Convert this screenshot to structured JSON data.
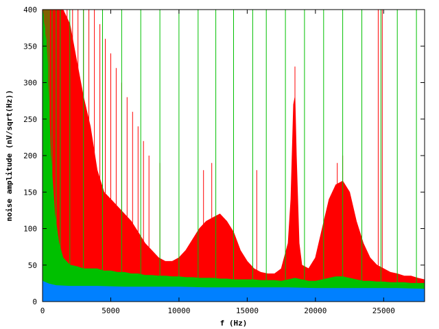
{
  "chart_data": {
    "type": "line",
    "title": "",
    "xlabel": "f (Hz)",
    "ylabel": "noise amplitude (nV/sqrt(Hz))",
    "xlim": [
      0,
      28000
    ],
    "ylim": [
      0,
      400
    ],
    "xticks": [
      0,
      5000,
      10000,
      15000,
      20000,
      25000
    ],
    "xtick_labels": [
      "0",
      "5000",
      "10000",
      "15000",
      "20000",
      "25000"
    ],
    "yticks": [
      0,
      50,
      100,
      150,
      200,
      250,
      300,
      350,
      400
    ],
    "ytick_labels": [
      "0",
      "50",
      "100",
      "150",
      "200",
      "250",
      "300",
      "350",
      "400"
    ],
    "grid": false,
    "legend": "none",
    "series": [
      {
        "color": "#ff0000",
        "x": [
          0,
          300,
          600,
          900,
          1200,
          1500,
          2000,
          2500,
          3000,
          3500,
          4000,
          4500,
          5000,
          5500,
          6000,
          6500,
          7000,
          7500,
          8000,
          8500,
          9000,
          9500,
          10000,
          10500,
          11000,
          11500,
          12000,
          12500,
          13000,
          13500,
          14000,
          14500,
          15000,
          15500,
          16000,
          16500,
          17000,
          17500,
          18000,
          18200,
          18400,
          18500,
          18600,
          18800,
          19000,
          19500,
          20000,
          20500,
          21000,
          21500,
          22000,
          22500,
          23000,
          23500,
          24000,
          24500,
          25000,
          25500,
          26000,
          26500,
          27000,
          27500,
          28000
        ],
        "y": [
          400,
          400,
          400,
          400,
          400,
          400,
          380,
          330,
          280,
          240,
          180,
          150,
          140,
          130,
          120,
          110,
          95,
          80,
          70,
          60,
          55,
          55,
          60,
          70,
          85,
          100,
          110,
          115,
          120,
          110,
          95,
          70,
          55,
          45,
          40,
          38,
          38,
          45,
          80,
          140,
          270,
          280,
          200,
          80,
          50,
          45,
          60,
          100,
          140,
          160,
          165,
          150,
          110,
          80,
          60,
          50,
          45,
          40,
          38,
          35,
          35,
          32,
          30
        ]
      },
      {
        "color": "#00c000",
        "x": [
          0,
          300,
          600,
          900,
          1200,
          1500,
          2000,
          2500,
          3000,
          3500,
          4000,
          4500,
          5000,
          5500,
          6000,
          6500,
          7000,
          7500,
          8000,
          8500,
          9000,
          9500,
          10000,
          10500,
          11000,
          11500,
          12000,
          12500,
          13000,
          13500,
          14000,
          14500,
          15000,
          15500,
          16000,
          16500,
          17000,
          17500,
          18000,
          18500,
          19000,
          19500,
          20000,
          20500,
          21000,
          21500,
          22000,
          22500,
          23000,
          23500,
          24000,
          24500,
          25000,
          25500,
          26000,
          26500,
          27000,
          27500,
          28000
        ],
        "y": [
          400,
          350,
          200,
          120,
          80,
          60,
          50,
          48,
          45,
          45,
          45,
          42,
          42,
          40,
          40,
          38,
          38,
          36,
          36,
          35,
          35,
          34,
          34,
          33,
          33,
          32,
          32,
          32,
          31,
          31,
          30,
          30,
          30,
          30,
          29,
          29,
          29,
          28,
          30,
          32,
          30,
          28,
          28,
          30,
          32,
          34,
          34,
          32,
          30,
          28,
          28,
          27,
          27,
          26,
          26,
          26,
          25,
          25,
          25
        ]
      },
      {
        "color": "#0080ff",
        "x": [
          0,
          500,
          1000,
          2000,
          4000,
          6000,
          8000,
          10000,
          12000,
          14000,
          16000,
          18000,
          20000,
          22000,
          24000,
          26000,
          28000
        ],
        "y": [
          28,
          24,
          22,
          21,
          21,
          20,
          20,
          20,
          19,
          19,
          19,
          19,
          18,
          18,
          18,
          18,
          17
        ]
      }
    ],
    "spikes_red": [
      {
        "x": 300,
        "y": 400
      },
      {
        "x": 600,
        "y": 400
      },
      {
        "x": 1000,
        "y": 400
      },
      {
        "x": 1400,
        "y": 400
      },
      {
        "x": 1800,
        "y": 400
      },
      {
        "x": 2200,
        "y": 400
      },
      {
        "x": 2600,
        "y": 400
      },
      {
        "x": 3000,
        "y": 400
      },
      {
        "x": 3400,
        "y": 400
      },
      {
        "x": 3800,
        "y": 400
      },
      {
        "x": 4200,
        "y": 380
      },
      {
        "x": 4600,
        "y": 360
      },
      {
        "x": 5000,
        "y": 340
      },
      {
        "x": 5400,
        "y": 320
      },
      {
        "x": 5800,
        "y": 300
      },
      {
        "x": 6200,
        "y": 280
      },
      {
        "x": 6600,
        "y": 260
      },
      {
        "x": 7000,
        "y": 240
      },
      {
        "x": 7400,
        "y": 220
      },
      {
        "x": 7800,
        "y": 200
      },
      {
        "x": 8600,
        "y": 190
      },
      {
        "x": 11800,
        "y": 180
      },
      {
        "x": 12400,
        "y": 190
      },
      {
        "x": 15700,
        "y": 180
      },
      {
        "x": 18500,
        "y": 322
      },
      {
        "x": 21600,
        "y": 190
      },
      {
        "x": 22000,
        "y": 200
      },
      {
        "x": 24600,
        "y": 400
      },
      {
        "x": 24900,
        "y": 400
      }
    ],
    "spikes_green": [
      {
        "x": 100,
        "y": 400
      },
      {
        "x": 200,
        "y": 400
      },
      {
        "x": 300,
        "y": 400
      },
      {
        "x": 400,
        "y": 400
      },
      {
        "x": 500,
        "y": 400
      },
      {
        "x": 700,
        "y": 400
      },
      {
        "x": 1000,
        "y": 400
      },
      {
        "x": 1300,
        "y": 400
      },
      {
        "x": 2000,
        "y": 400
      },
      {
        "x": 3000,
        "y": 400
      },
      {
        "x": 4400,
        "y": 400
      },
      {
        "x": 5800,
        "y": 400
      },
      {
        "x": 7200,
        "y": 400
      },
      {
        "x": 8600,
        "y": 400
      },
      {
        "x": 10000,
        "y": 400
      },
      {
        "x": 11400,
        "y": 400
      },
      {
        "x": 12700,
        "y": 400
      },
      {
        "x": 14000,
        "y": 400
      },
      {
        "x": 15400,
        "y": 400
      },
      {
        "x": 16400,
        "y": 400
      },
      {
        "x": 17800,
        "y": 400
      },
      {
        "x": 19200,
        "y": 400
      },
      {
        "x": 20600,
        "y": 400
      },
      {
        "x": 22000,
        "y": 400
      },
      {
        "x": 23400,
        "y": 400
      },
      {
        "x": 24800,
        "y": 400
      },
      {
        "x": 26000,
        "y": 400
      },
      {
        "x": 27400,
        "y": 400
      }
    ]
  }
}
